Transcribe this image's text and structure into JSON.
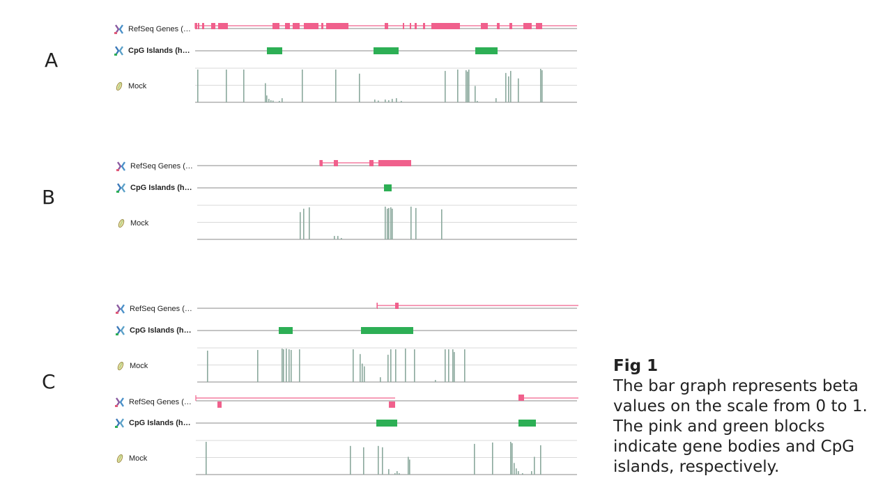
{
  "panels": [
    {
      "letter": "A",
      "tracks": {
        "refseq": {
          "label": "RefSeq Genes (…",
          "line_range": [
            280,
            828
          ],
          "intron": [
            280,
            828
          ],
          "exons": [
            [
              280,
              283
            ],
            [
              284,
              286
            ],
            [
              290,
              293
            ],
            [
              303,
              309
            ],
            [
              313,
              327
            ],
            [
              391,
              401
            ],
            [
              409,
              416
            ],
            [
              420,
              430
            ],
            [
              436,
              457
            ],
            [
              461,
              464
            ],
            [
              468,
              500
            ],
            [
              552,
              557
            ],
            [
              578,
              580
            ],
            [
              588,
              590
            ],
            [
              595,
              598
            ],
            [
              607,
              610
            ],
            [
              619,
              660
            ],
            [
              690,
              700
            ],
            [
              713,
              717
            ],
            [
              731,
              735
            ],
            [
              751,
              763
            ],
            [
              769,
              778
            ]
          ]
        },
        "cpg": {
          "label": "CpG Islands (h…",
          "line_range": [
            280,
            828
          ],
          "blocks": [
            [
              383,
              405
            ],
            [
              536,
              572
            ],
            [
              682,
              714
            ]
          ]
        },
        "mock": {
          "label": "Mock",
          "line_range": [
            280,
            828
          ],
          "bars": [
            [
              283,
              0.96
            ],
            [
              324,
              0.96
            ],
            [
              349,
              0.96
            ],
            [
              380,
              0.56
            ],
            [
              382,
              0.2
            ],
            [
              385,
              0.1
            ],
            [
              388,
              0.06
            ],
            [
              391,
              0.05
            ],
            [
              400,
              0.04
            ],
            [
              404,
              0.12
            ],
            [
              433,
              0.96
            ],
            [
              481,
              0.96
            ],
            [
              515,
              0.84
            ],
            [
              537,
              0.08
            ],
            [
              542,
              0.05
            ],
            [
              552,
              0.08
            ],
            [
              557,
              0.06
            ],
            [
              562,
              0.1
            ],
            [
              568,
              0.12
            ],
            [
              575,
              0.04
            ],
            [
              638,
              0.92
            ],
            [
              656,
              0.96
            ],
            [
              668,
              0.94
            ],
            [
              670,
              0.9
            ],
            [
              672,
              0.96
            ],
            [
              681,
              0.48
            ],
            [
              684,
              0.04
            ],
            [
              711,
              0.12
            ],
            [
              725,
              0.86
            ],
            [
              729,
              0.76
            ],
            [
              732,
              0.92
            ],
            [
              743,
              0.7
            ],
            [
              775,
              0.98
            ],
            [
              777,
              0.94
            ]
          ]
        }
      }
    },
    {
      "letter": "B",
      "tracks": {
        "refseq": {
          "label": "RefSeq Genes (…",
          "line_range": [
            283,
            828
          ],
          "intron": [
            459,
            590
          ],
          "exons": [
            [
              459,
              463
            ],
            [
              479,
              485
            ],
            [
              530,
              536
            ],
            [
              543,
              590
            ]
          ]
        },
        "cpg": {
          "label": "CpG Islands (h…",
          "line_range": [
            283,
            828
          ],
          "blocks": [
            [
              551,
              562
            ]
          ]
        },
        "mock": {
          "label": "Mock",
          "line_range": [
            283,
            828
          ],
          "bars": [
            [
              430,
              0.8
            ],
            [
              435,
              0.9
            ],
            [
              443,
              0.94
            ],
            [
              479,
              0.1
            ],
            [
              484,
              0.1
            ],
            [
              489,
              0.04
            ],
            [
              552,
              0.96
            ],
            [
              555,
              0.9
            ],
            [
              557,
              0.92
            ],
            [
              560,
              0.94
            ],
            [
              562,
              0.9
            ],
            [
              589,
              0.96
            ],
            [
              596,
              0.92
            ],
            [
              633,
              0.88
            ]
          ]
        }
      }
    },
    {
      "letter": "C",
      "tracks": {
        "refseq": {
          "label": "RefSeq Genes (…",
          "line_range": [
            283,
            828
          ],
          "intron": [
            541,
            830
          ],
          "exons": [
            [
              541,
              542
            ],
            [
              567,
              572
            ]
          ]
        },
        "cpg": {
          "label": "CpG Islands (h…",
          "line_range": [
            283,
            828
          ],
          "blocks": [
            [
              400,
              420
            ],
            [
              518,
              593
            ]
          ]
        },
        "mock": {
          "label": "Mock",
          "line_range": [
            283,
            828
          ],
          "bars": [
            [
              297,
              0.92
            ],
            [
              369,
              0.94
            ],
            [
              404,
              0.98
            ],
            [
              406,
              0.96
            ],
            [
              410,
              0.98
            ],
            [
              414,
              0.96
            ],
            [
              417,
              0.94
            ],
            [
              429,
              0.96
            ],
            [
              506,
              0.96
            ],
            [
              516,
              0.82
            ],
            [
              519,
              0.54
            ],
            [
              522,
              0.46
            ],
            [
              545,
              0.14
            ],
            [
              556,
              0.8
            ],
            [
              560,
              0.96
            ],
            [
              567,
              0.96
            ],
            [
              581,
              0.98
            ],
            [
              594,
              0.96
            ],
            [
              624,
              0.06
            ],
            [
              638,
              0.96
            ],
            [
              643,
              0.96
            ],
            [
              649,
              0.96
            ],
            [
              651,
              0.88
            ],
            [
              666,
              0.96
            ]
          ]
        }
      }
    },
    {
      "letter": "",
      "tracks": {
        "refseq": {
          "label": "RefSeq Genes (…",
          "line_range": [
            281,
            828
          ],
          "intron": [
            281,
            567
          ],
          "exons": [
            [
              312,
              318
            ],
            [
              558,
              567
            ],
            [
              744,
              752
            ]
          ],
          "second_intron": [
            744,
            830
          ]
        },
        "cpg": {
          "label": "CpG Islands (h…",
          "line_range": [
            281,
            828
          ],
          "blocks": [
            [
              540,
              570
            ],
            [
              744,
              769
            ]
          ]
        },
        "mock": {
          "label": "Mock",
          "line_range": [
            281,
            828
          ],
          "bars": [
            [
              295,
              0.96
            ],
            [
              502,
              0.84
            ],
            [
              521,
              0.8
            ],
            [
              542,
              0.84
            ],
            [
              548,
              0.8
            ],
            [
              557,
              0.16
            ],
            [
              566,
              0.04
            ],
            [
              569,
              0.1
            ],
            [
              572,
              0.04
            ],
            [
              585,
              0.52
            ],
            [
              587,
              0.44
            ],
            [
              680,
              0.9
            ],
            [
              706,
              0.94
            ],
            [
              732,
              0.96
            ],
            [
              734,
              0.92
            ],
            [
              737,
              0.34
            ],
            [
              740,
              0.18
            ],
            [
              743,
              0.1
            ],
            [
              749,
              0.04
            ],
            [
              762,
              0.1
            ],
            [
              766,
              0.52
            ],
            [
              775,
              0.86
            ]
          ]
        }
      }
    }
  ],
  "colors": {
    "gene": "#f0608c",
    "cpg": "#2daf55",
    "bar": "#8aa89c",
    "axis": "#8a8a8a",
    "grid": "#d9d9d9"
  },
  "caption": {
    "title": "Fig 1",
    "body": "The bar graph represents beta values on the scale from 0 to 1. The pink and green blocks indicate gene bodies and CpG islands, respectively."
  }
}
